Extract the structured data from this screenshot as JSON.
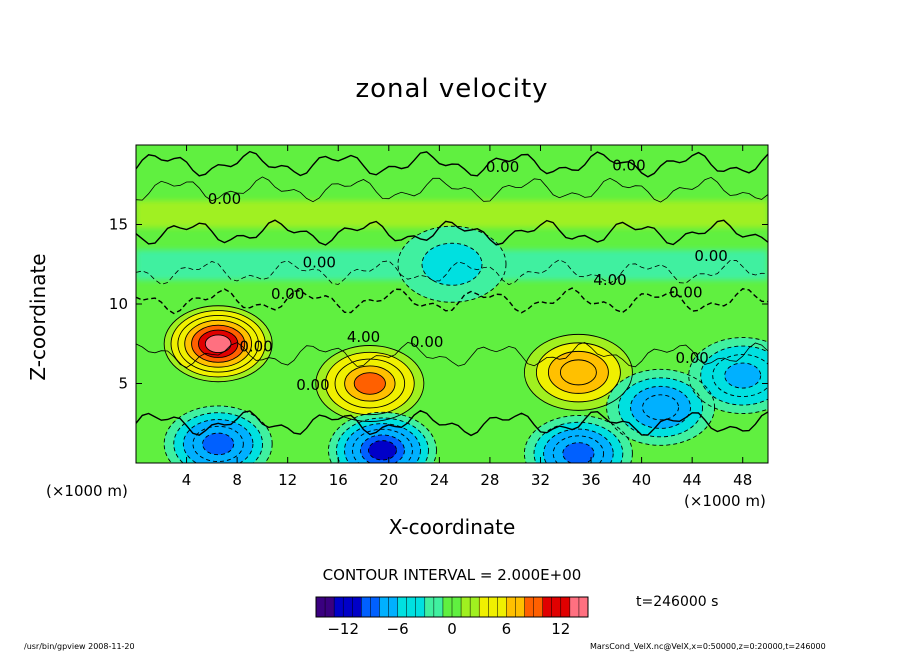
{
  "chart_data": {
    "type": "contour",
    "title": "zonal velocity",
    "xlabel": "X-coordinate",
    "ylabel": "Z-coordinate",
    "x_unit_label": "(×1000 m)",
    "xlim": [
      0,
      50
    ],
    "ylim": [
      0,
      20
    ],
    "x_ticks": [
      4,
      8,
      12,
      16,
      20,
      24,
      28,
      32,
      36,
      40,
      44,
      48
    ],
    "y_ticks": [
      5,
      10,
      15
    ],
    "contour_interval_text": "CONTOUR INTERVAL = 2.000E+00",
    "contour_labels": [
      "0.00",
      "0.00",
      "0.00",
      "0.00",
      "0.00",
      "0.00",
      "4.00",
      "4.00",
      "0.00",
      "0.00",
      "0.00",
      "0.00",
      "0.00"
    ],
    "colorbar": {
      "range": [
        -15,
        15
      ],
      "ticks": [
        -12,
        -6,
        0,
        6,
        12
      ],
      "colors": [
        "#3a0080",
        "#0000c8",
        "#0060ff",
        "#00b0ff",
        "#00e0e0",
        "#40f0a0",
        "#60f040",
        "#a0f020",
        "#f0f000",
        "#ffc000",
        "#ff6000",
        "#e00000",
        "#ff7080"
      ]
    },
    "extrema": [
      {
        "type": "max",
        "x": 6.5,
        "z": 7.5,
        "value": 13
      },
      {
        "type": "max",
        "x": 18.5,
        "z": 5.0,
        "value": 9
      },
      {
        "type": "max",
        "x": 35.0,
        "z": 5.7,
        "value": 8
      },
      {
        "type": "min",
        "x": 6.5,
        "z": 1.2,
        "value": -10
      },
      {
        "type": "min",
        "x": 19.5,
        "z": 0.8,
        "value": -12
      },
      {
        "type": "min",
        "x": 35.0,
        "z": 0.6,
        "value": -10
      },
      {
        "type": "min",
        "x": 41.5,
        "z": 3.5,
        "value": -8
      },
      {
        "type": "min",
        "x": 48.0,
        "z": 5.5,
        "value": -7
      },
      {
        "type": "min",
        "x": 25.0,
        "z": 12.5,
        "value": -4
      }
    ]
  },
  "time_label": "t=246000 s",
  "footer_left": "/usr/bin/gpview  2008-11-20",
  "footer_right": "MarsCond_VelX.nc@VelX,x=0:50000,z=0:20000,t=246000"
}
